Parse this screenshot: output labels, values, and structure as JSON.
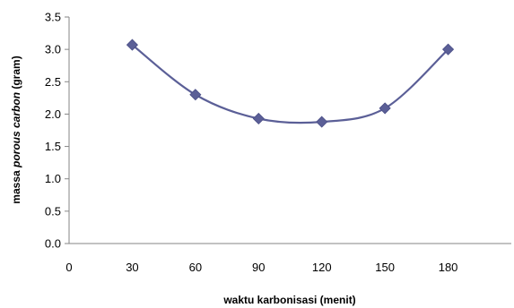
{
  "chart_data": {
    "type": "line",
    "x": [
      30,
      60,
      90,
      120,
      150,
      180
    ],
    "series": [
      {
        "values": [
          3.07,
          2.3,
          1.93,
          1.88,
          2.09,
          3.0
        ],
        "color": "#5b5f97",
        "marker": "diamond",
        "smooth": true
      }
    ],
    "title": "",
    "xlabel": "waktu karbonisasi (menit)",
    "ylabel": {
      "part1": "massa ",
      "part2": "porous carbon",
      "part3": "  (gram)"
    },
    "xlim": [
      0,
      210
    ],
    "ylim": [
      0,
      3.5
    ],
    "xticks": [
      "0",
      "30",
      "60",
      "90",
      "120",
      "150",
      "180"
    ],
    "yticks": [
      "0.0",
      "0.5",
      "1.0",
      "1.5",
      "2.0",
      "2.5",
      "3.0",
      "3.5"
    ],
    "grid": false,
    "legend": "none"
  }
}
